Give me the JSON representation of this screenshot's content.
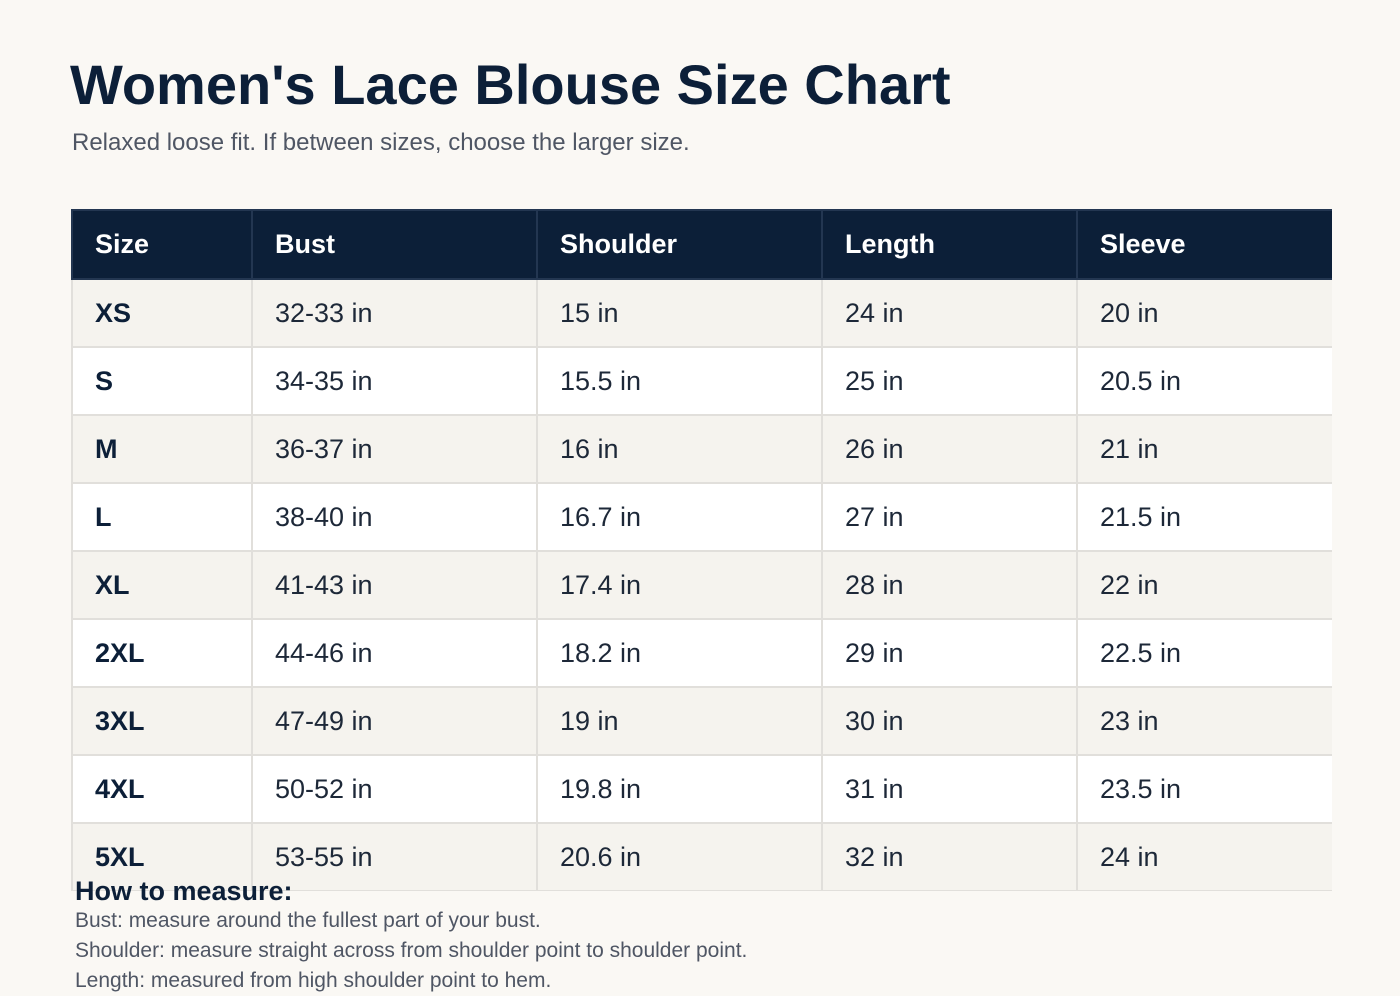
{
  "title": "Women's Lace Blouse Size Chart",
  "subtitle": "Relaxed loose fit. If between sizes, choose the larger size.",
  "table": {
    "headers": [
      "Size",
      "Bust",
      "Shoulder",
      "Length",
      "Sleeve"
    ],
    "rows": [
      [
        "XS",
        "32-33 in",
        "15 in",
        "24 in",
        "20 in"
      ],
      [
        "S",
        "34-35 in",
        "15.5 in",
        "25 in",
        "20.5 in"
      ],
      [
        "M",
        "36-37 in",
        "16 in",
        "26 in",
        "21 in"
      ],
      [
        "L",
        "38-40 in",
        "16.7 in",
        "27 in",
        "21.5 in"
      ],
      [
        "XL",
        "41-43 in",
        "17.4 in",
        "28 in",
        "22 in"
      ],
      [
        "2XL",
        "44-46 in",
        "18.2 in",
        "29 in",
        "22.5 in"
      ],
      [
        "3XL",
        "47-49 in",
        "19 in",
        "30 in",
        "23 in"
      ],
      [
        "4XL",
        "50-52 in",
        "19.8 in",
        "31 in",
        "23.5 in"
      ],
      [
        "5XL",
        "53-55 in",
        "20.6 in",
        "32 in",
        "24 in"
      ]
    ]
  },
  "how_to_measure": {
    "heading": "How to measure:",
    "lines": [
      "Bust: measure around the fullest part of your bust.",
      "Shoulder: measure straight across from shoulder point to shoulder point.",
      "Length: measured from high shoulder point to hem."
    ]
  },
  "colors": {
    "header_bg": "#0c1f38",
    "row_alt_bg": "#f5f3ee",
    "page_bg": "#faf8f4"
  }
}
